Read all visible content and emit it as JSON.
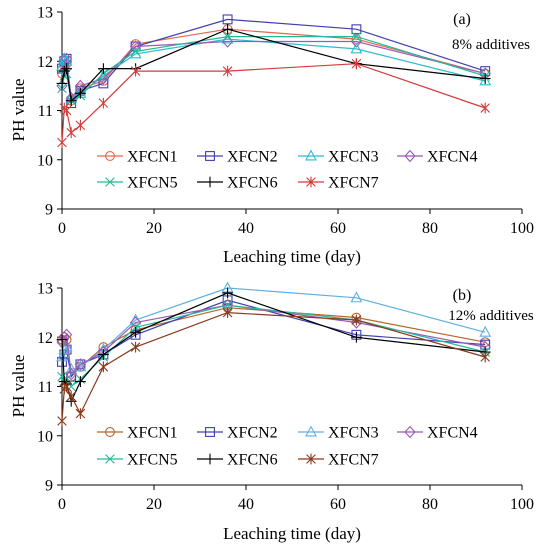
{
  "figure": {
    "background": "#ffffff"
  },
  "chart_data": [
    {
      "type": "line",
      "panel_label": "(a)",
      "annotation": "8% additives",
      "xlabel": "Leaching time (day)",
      "ylabel": "PH value",
      "xlim": [
        0,
        100
      ],
      "ylim": [
        9,
        13
      ],
      "xticks": [
        0,
        20,
        40,
        60,
        80,
        100
      ],
      "yticks": [
        9,
        10,
        11,
        12,
        13
      ],
      "grid": false,
      "legend_position": "lower-center",
      "series": [
        {
          "name": "XFCN1",
          "color": "#e0694f",
          "marker": "circle",
          "x": [
            0,
            0.5,
            1,
            2,
            4,
            9,
            16,
            36,
            64,
            92
          ],
          "y": [
            11.75,
            11.9,
            11.95,
            11.2,
            11.45,
            11.6,
            12.35,
            12.65,
            12.45,
            11.75
          ]
        },
        {
          "name": "XFCN2",
          "color": "#4040b0",
          "marker": "square",
          "x": [
            0,
            0.5,
            1,
            2,
            4,
            9,
            16,
            36,
            64,
            92
          ],
          "y": [
            11.85,
            12.0,
            12.05,
            11.15,
            11.4,
            11.55,
            12.3,
            12.85,
            12.65,
            11.8
          ]
        },
        {
          "name": "XFCN3",
          "color": "#2bbcd0",
          "marker": "triangle",
          "x": [
            0,
            0.5,
            1,
            2,
            4,
            9,
            16,
            36,
            64,
            92
          ],
          "y": [
            11.9,
            12.05,
            12.0,
            11.25,
            11.35,
            11.7,
            12.15,
            12.45,
            12.25,
            11.6
          ]
        },
        {
          "name": "XFCN4",
          "color": "#9a5bb5",
          "marker": "diamond",
          "x": [
            0,
            0.5,
            1,
            2,
            4,
            9,
            16,
            36,
            64,
            92
          ],
          "y": [
            11.5,
            11.8,
            12.05,
            11.25,
            11.5,
            11.65,
            12.3,
            12.4,
            12.4,
            11.75
          ]
        },
        {
          "name": "XFCN5",
          "color": "#26b89a",
          "marker": "x",
          "x": [
            0,
            0.5,
            1,
            2,
            4,
            9,
            16,
            36,
            64,
            92
          ],
          "y": [
            11.45,
            11.7,
            11.75,
            11.2,
            11.3,
            11.75,
            12.2,
            12.5,
            12.5,
            11.7
          ]
        },
        {
          "name": "XFCN6",
          "color": "#000000",
          "marker": "plus",
          "x": [
            0,
            0.5,
            1,
            2,
            4,
            9,
            16,
            36,
            64,
            92
          ],
          "y": [
            11.55,
            11.8,
            11.85,
            11.2,
            11.35,
            11.85,
            11.85,
            12.65,
            11.95,
            11.65
          ]
        },
        {
          "name": "XFCN7",
          "color": "#d63a3a",
          "marker": "asterisk",
          "x": [
            0,
            0.5,
            1,
            2,
            4,
            9,
            16,
            36,
            64,
            92
          ],
          "y": [
            10.35,
            11.05,
            11.0,
            10.55,
            10.7,
            11.15,
            11.8,
            11.8,
            11.95,
            11.05
          ]
        }
      ]
    },
    {
      "type": "line",
      "panel_label": "(b)",
      "annotation": "12% additives",
      "xlabel": "Leaching time (day)",
      "ylabel": "PH value",
      "xlim": [
        0,
        100
      ],
      "ylim": [
        9,
        13
      ],
      "xticks": [
        0,
        20,
        40,
        60,
        80,
        100
      ],
      "yticks": [
        9,
        10,
        11,
        12,
        13
      ],
      "grid": false,
      "legend_position": "lower-center",
      "series": [
        {
          "name": "XFCN1",
          "color": "#b8662e",
          "marker": "circle",
          "x": [
            0,
            0.5,
            1,
            2,
            4,
            9,
            16,
            36,
            64,
            92
          ],
          "y": [
            11.95,
            12.0,
            11.95,
            11.2,
            11.4,
            11.8,
            12.15,
            12.6,
            12.4,
            11.9
          ]
        },
        {
          "name": "XFCN2",
          "color": "#4040b0",
          "marker": "square",
          "x": [
            0,
            0.5,
            1,
            2,
            4,
            9,
            16,
            36,
            64,
            92
          ],
          "y": [
            11.5,
            11.65,
            11.75,
            11.2,
            11.45,
            11.65,
            12.05,
            12.75,
            12.05,
            11.85
          ]
        },
        {
          "name": "XFCN3",
          "color": "#5fb0e0",
          "marker": "triangle",
          "x": [
            0,
            0.5,
            1,
            2,
            4,
            9,
            16,
            36,
            64,
            92
          ],
          "y": [
            11.6,
            11.75,
            11.8,
            11.35,
            11.4,
            11.75,
            12.35,
            13.0,
            12.8,
            12.1
          ]
        },
        {
          "name": "XFCN4",
          "color": "#9a5bb5",
          "marker": "diamond",
          "x": [
            0,
            0.5,
            1,
            2,
            4,
            9,
            16,
            36,
            64,
            92
          ],
          "y": [
            11.9,
            12.0,
            12.05,
            11.25,
            11.45,
            11.7,
            12.3,
            12.65,
            12.3,
            11.8
          ]
        },
        {
          "name": "XFCN5",
          "color": "#26b89a",
          "marker": "x",
          "x": [
            0,
            0.5,
            1,
            2,
            4,
            9,
            16,
            36,
            64,
            92
          ],
          "y": [
            11.2,
            11.1,
            11.15,
            11.0,
            11.15,
            11.6,
            12.2,
            12.65,
            12.35,
            11.7
          ]
        },
        {
          "name": "XFCN6",
          "color": "#000000",
          "marker": "plus",
          "x": [
            0,
            0.5,
            1,
            2,
            4,
            9,
            16,
            36,
            64,
            92
          ],
          "y": [
            11.95,
            11.1,
            11.05,
            10.7,
            11.1,
            11.65,
            12.1,
            12.9,
            12.0,
            11.7
          ]
        },
        {
          "name": "XFCN7",
          "color": "#8a3a1c",
          "marker": "asterisk",
          "x": [
            0,
            0.5,
            1,
            2,
            4,
            9,
            16,
            36,
            64,
            92
          ],
          "y": [
            10.3,
            10.95,
            11.0,
            10.8,
            10.45,
            11.4,
            11.8,
            12.5,
            12.35,
            11.6
          ]
        }
      ]
    }
  ]
}
